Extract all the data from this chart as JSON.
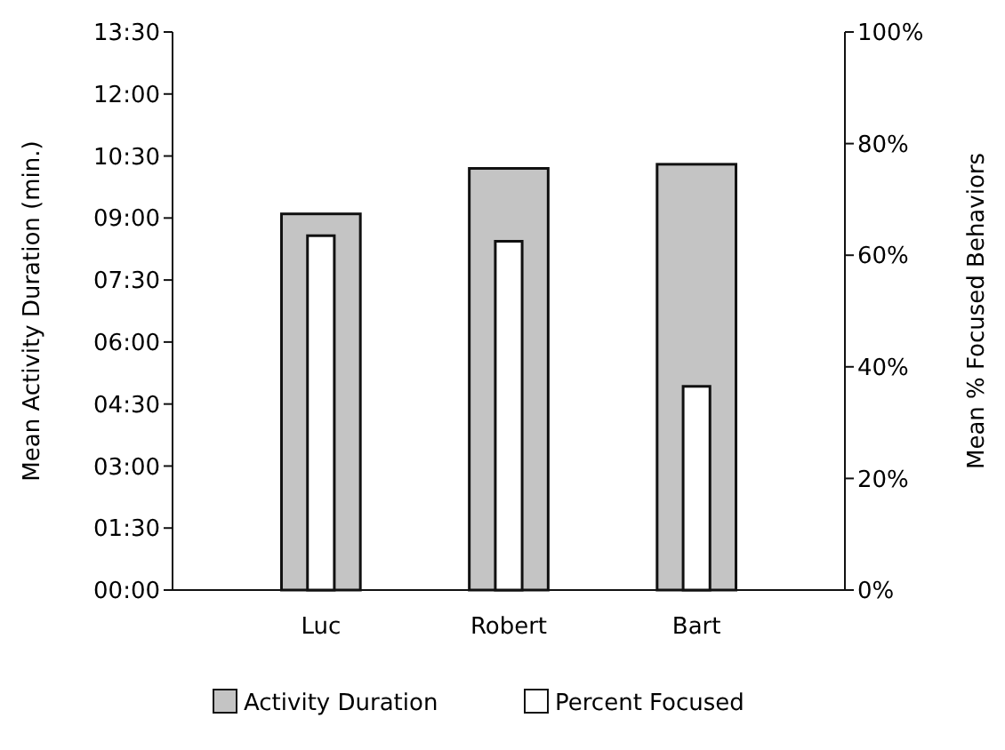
{
  "chart_data": {
    "type": "bar",
    "categories": [
      "Luc",
      "Robert",
      "Bart"
    ],
    "series": [
      {
        "name": "Activity Duration",
        "color": "#c4c4c4",
        "values": [
          9.1,
          10.2,
          10.3
        ]
      },
      {
        "name": "Percent Focused",
        "color": "#ffffff",
        "values": [
          63.5,
          62.5,
          36.5
        ],
        "axis": "y2"
      }
    ],
    "ylabel": "Mean Activity Duration (min.)",
    "y2label": "Mean % Focused Behaviors",
    "ylim": [
      0,
      13.5
    ],
    "yticks": [
      {
        "value": 0,
        "label": "00:00"
      },
      {
        "value": 1.5,
        "label": "01:30"
      },
      {
        "value": 3,
        "label": "03:00"
      },
      {
        "value": 4.5,
        "label": "04:30"
      },
      {
        "value": 6,
        "label": "06:00"
      },
      {
        "value": 7.5,
        "label": "07:30"
      },
      {
        "value": 9,
        "label": "09:00"
      },
      {
        "value": 10.5,
        "label": "10:30"
      },
      {
        "value": 12,
        "label": "12:00"
      },
      {
        "value": 13.5,
        "label": "13:30"
      }
    ],
    "y2lim": [
      0,
      100
    ],
    "y2ticks": [
      {
        "value": 0,
        "label": "0%"
      },
      {
        "value": 20,
        "label": "20%"
      },
      {
        "value": 40,
        "label": "40%"
      },
      {
        "value": 60,
        "label": "60%"
      },
      {
        "value": 80,
        "label": "80%"
      },
      {
        "value": 100,
        "label": "100%"
      }
    ],
    "grid": false,
    "legend": "bottom"
  }
}
